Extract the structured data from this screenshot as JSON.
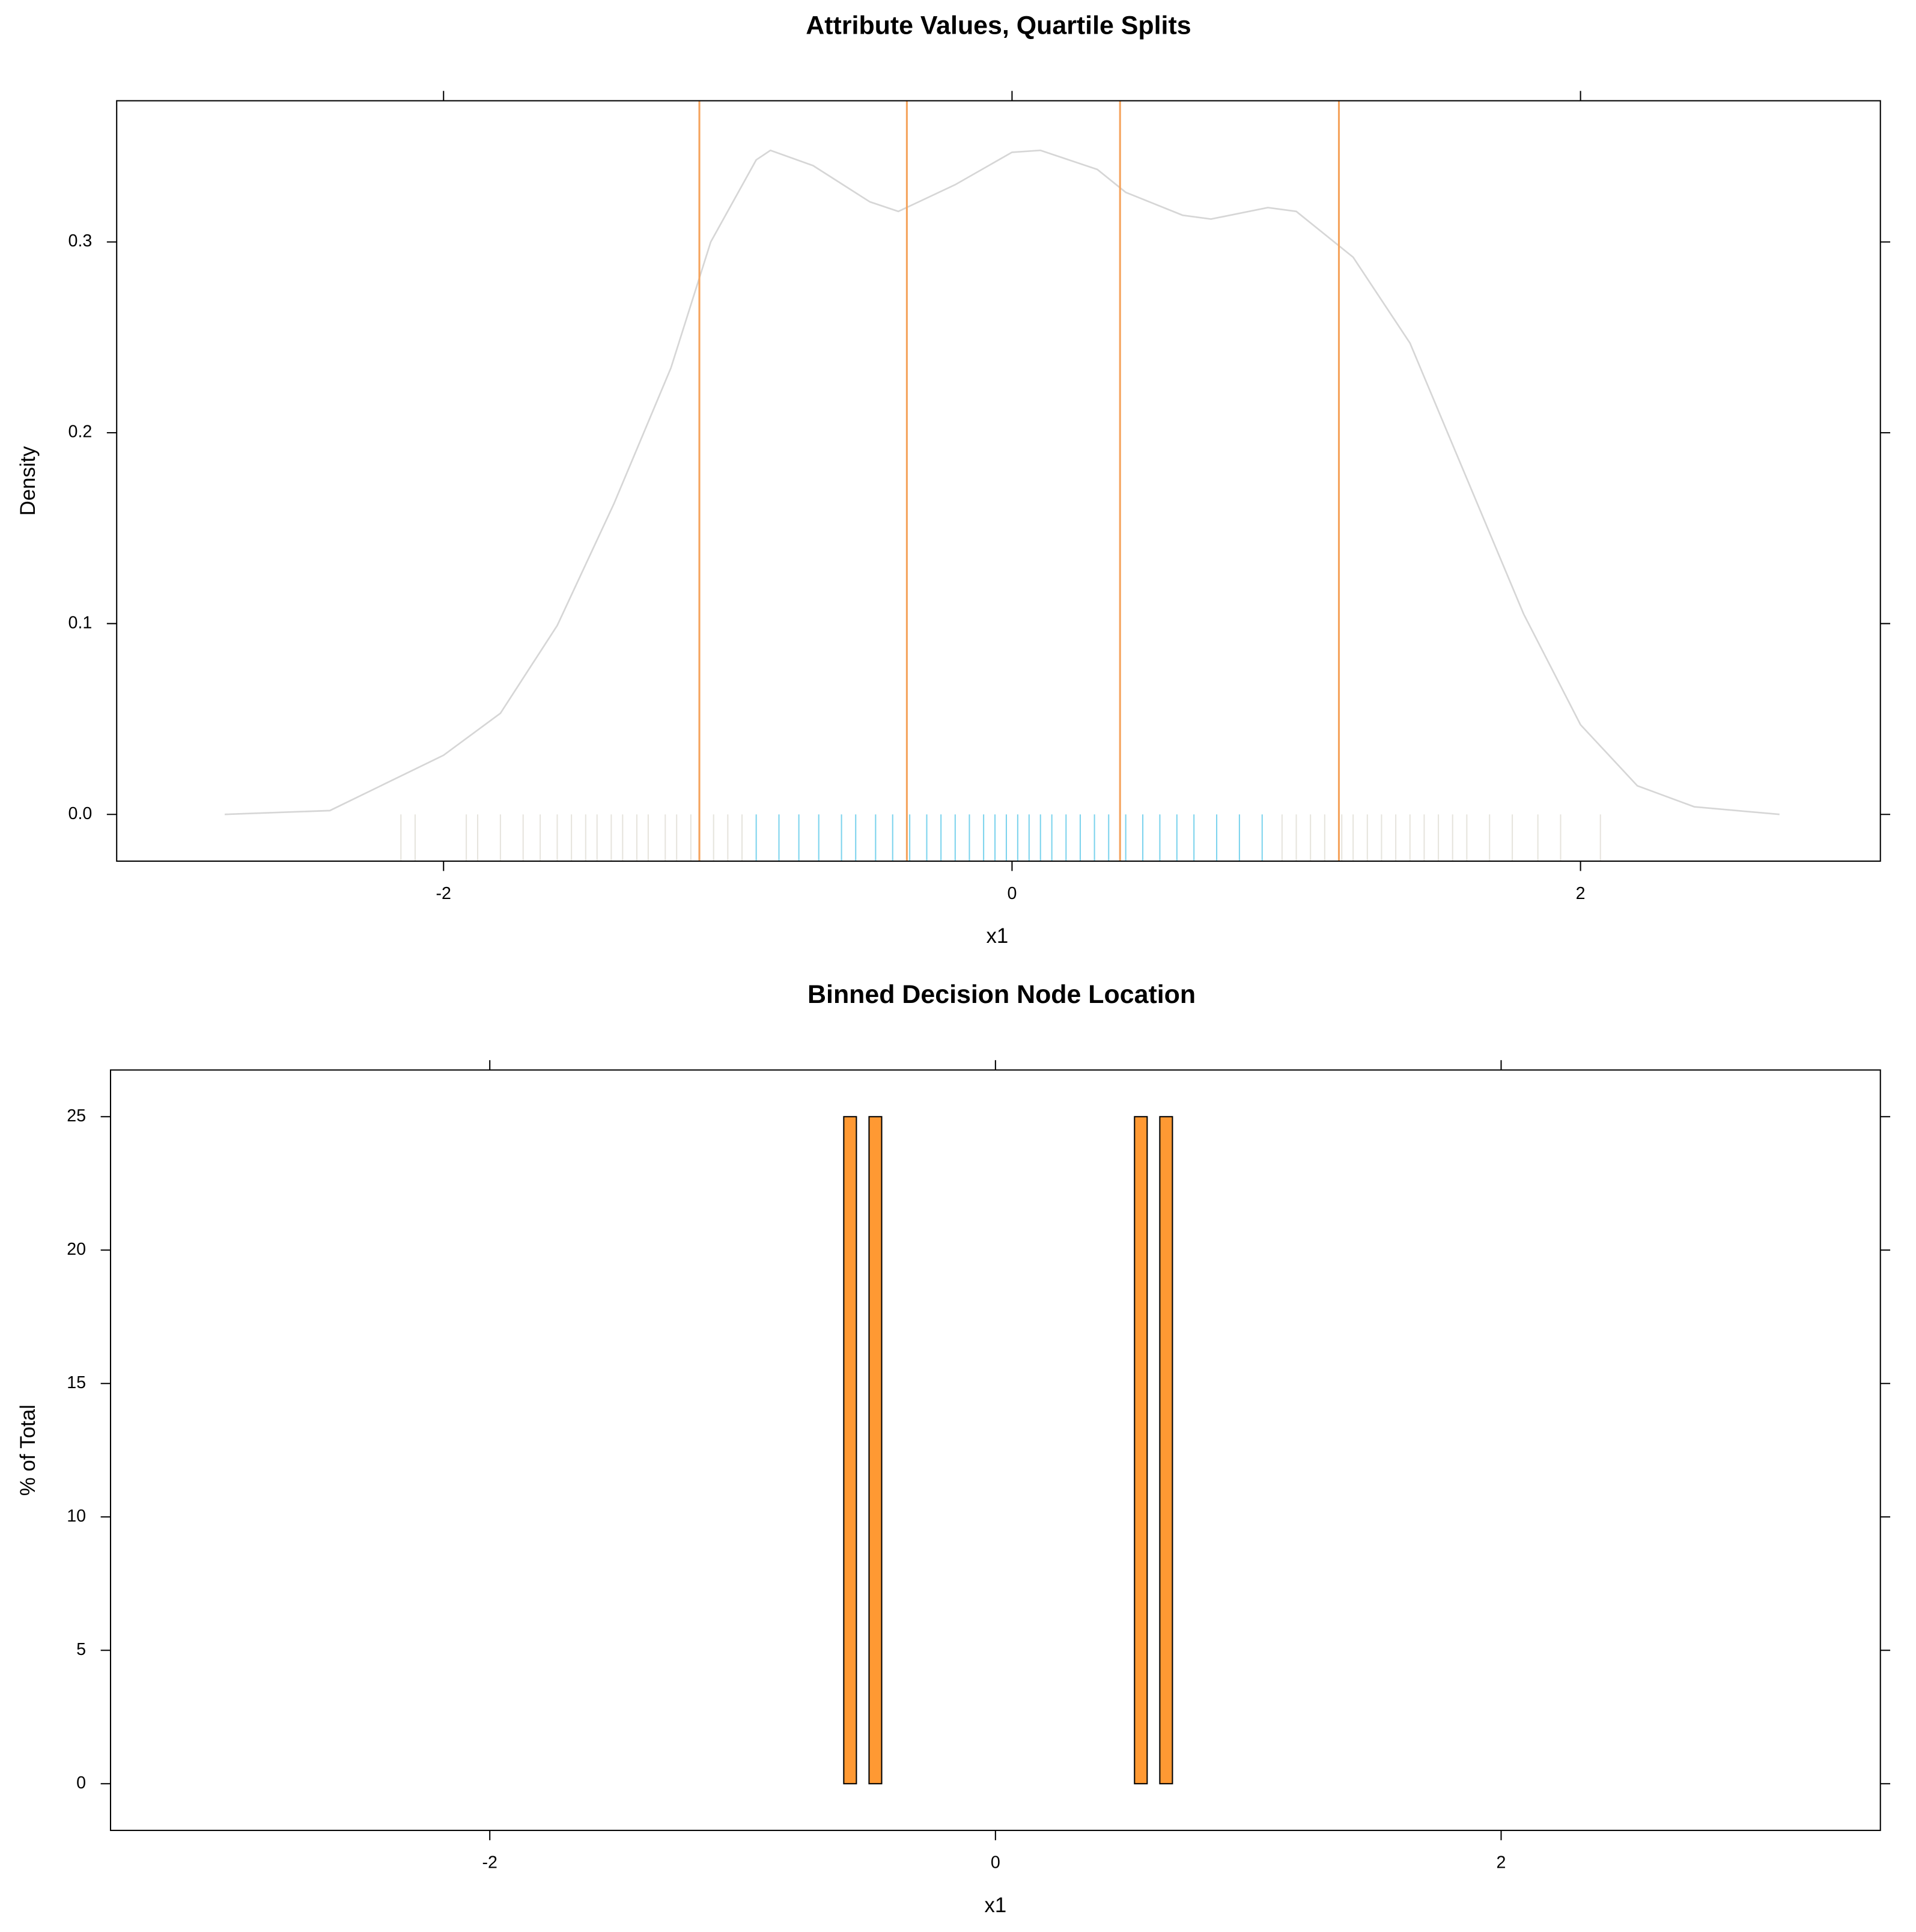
{
  "chart_data": [
    {
      "type": "line",
      "title": "Attribute Values, Quartile Splits",
      "x_label": "x1",
      "y_label": "Density",
      "x": [
        -2.77,
        -2.4,
        -2.0,
        -1.8,
        -1.6,
        -1.4,
        -1.2,
        -1.06,
        -0.9,
        -0.85,
        -0.7,
        -0.5,
        -0.4,
        -0.2,
        0.0,
        0.1,
        0.3,
        0.4,
        0.6,
        0.7,
        0.9,
        1.0,
        1.2,
        1.4,
        1.6,
        1.8,
        2.0,
        2.2,
        2.4,
        2.7
      ],
      "series": [
        {
          "color": "#d6d6d6",
          "values": [
            0,
            0.002,
            0.031,
            0.053,
            0.099,
            0.163,
            0.234,
            0.3,
            0.343,
            0.348,
            0.34,
            0.321,
            0.316,
            0.33,
            0.347,
            0.348,
            0.338,
            0.326,
            0.314,
            0.312,
            0.318,
            0.316,
            0.292,
            0.247,
            0.176,
            0.105,
            0.047,
            0.015,
            0.004,
            0
          ]
        }
      ],
      "quartile_splits": {
        "color": "#f5a35c",
        "values": [
          -1.1,
          -0.37,
          0.38,
          1.15
        ]
      },
      "rug": [
        {
          "color": "#e0ddd5",
          "values": [
            -2.15,
            -2.1,
            -1.92,
            -1.88,
            -1.8,
            -1.72,
            -1.66,
            -1.6,
            -1.55,
            -1.5,
            -1.46,
            -1.41,
            -1.37,
            -1.32,
            -1.28,
            -1.22,
            -1.18,
            -1.13,
            -1.05,
            -1.0,
            -0.95,
            0.95,
            1.0,
            1.05,
            1.1,
            1.16,
            1.2,
            1.25,
            1.3,
            1.35,
            1.4,
            1.45,
            1.5,
            1.55,
            1.6,
            1.68,
            1.76,
            1.85,
            1.93,
            2.07
          ]
        },
        {
          "color": "#5bc8e8",
          "values": [
            -0.9,
            -0.82,
            -0.75,
            -0.68,
            -0.6,
            -0.55,
            -0.48,
            -0.42,
            -0.36,
            -0.3,
            -0.25,
            -0.2,
            -0.15,
            -0.1,
            -0.06,
            -0.02,
            0.02,
            0.06,
            0.1,
            0.14,
            0.19,
            0.24,
            0.29,
            0.34,
            0.4,
            0.46,
            0.52,
            0.58,
            0.64,
            0.72,
            0.8,
            0.88
          ]
        }
      ],
      "xlim": [
        -3.15,
        3.055
      ],
      "ylim": [
        -0.0245,
        0.374
      ],
      "xticks": [
        -2,
        0,
        2
      ],
      "yticks": [
        {
          "value": 0,
          "label": "0.0"
        },
        0.1,
        0.2,
        0.3
      ]
    },
    {
      "type": "histogram",
      "title": "Binned Decision Node Location",
      "x_label": "x1",
      "y_label": "% of Total",
      "color": "#ff9933",
      "bins": [
        -3.15,
        -3.1,
        -3.05,
        -3,
        -2.95,
        -2.9,
        -2.85,
        -2.8,
        -2.75,
        -2.7,
        -2.65,
        -2.6,
        -2.55,
        -2.5,
        -2.45,
        -2.4,
        -2.35,
        -2.3,
        -2.25,
        -2.2,
        -2.15,
        -2.1,
        -2.05,
        -2,
        -1.95,
        -1.9,
        -1.85,
        -1.8,
        -1.75,
        -1.7,
        -1.65,
        -1.6,
        -1.55,
        -1.5,
        -1.45,
        -1.4,
        -1.35,
        -1.3,
        -1.25,
        -1.2,
        -1.15,
        -1.1,
        -1.05,
        -1,
        -0.95,
        -0.9,
        -0.85,
        -0.8,
        -0.75,
        -0.7,
        -0.65,
        -0.6,
        -0.55,
        -0.5,
        -0.45,
        -0.4,
        -0.35,
        -0.3,
        -0.25,
        -0.2,
        -0.15,
        -0.1,
        -0.05,
        0,
        0.05,
        0.1,
        0.15,
        0.2,
        0.25,
        0.3,
        0.35,
        0.4,
        0.45,
        0.5,
        0.55,
        0.6,
        0.65,
        0.7,
        0.75,
        0.8,
        0.85,
        0.9,
        0.95,
        1,
        1.05,
        1.1,
        1.15,
        1.2,
        1.25,
        1.3,
        1.35,
        1.4,
        1.45,
        1.5,
        1.55,
        1.6,
        1.65,
        1.7,
        1.75,
        1.8,
        1.85,
        1.9,
        1.95,
        2,
        2.05,
        2.1,
        2.15,
        2.2,
        2.25,
        2.3,
        2.35,
        2.4,
        2.45,
        2.5,
        2.55,
        2.6,
        2.65,
        2.7,
        2.75,
        2.8,
        2.85,
        2.9,
        2.95,
        3,
        3.05,
        3.1,
        3.15
      ],
      "values": [
        0,
        0,
        0,
        0,
        0,
        0,
        0,
        0,
        0,
        0,
        0,
        0,
        0,
        0,
        0,
        0,
        0,
        0,
        0,
        0,
        0,
        0,
        0,
        0,
        0,
        0,
        0,
        0,
        0,
        0,
        0,
        0,
        0,
        0,
        0,
        0,
        0,
        0,
        0,
        0,
        0,
        0,
        0,
        0,
        0,
        0,
        0,
        0,
        0,
        0,
        0,
        25,
        0,
        25,
        0,
        0,
        0,
        0,
        0,
        0,
        0,
        0,
        0,
        0,
        0,
        0,
        0,
        0,
        0,
        0,
        0,
        0,
        0,
        0,
        25,
        0,
        25,
        0,
        0,
        0,
        0,
        0,
        0,
        0,
        0,
        0,
        0,
        0,
        0,
        0,
        0,
        0,
        0,
        0,
        0,
        0,
        0,
        0,
        0,
        0,
        0,
        0,
        0,
        0,
        0,
        0,
        0,
        0,
        0,
        0,
        0,
        0,
        0,
        0,
        0,
        0,
        0,
        0,
        0,
        0,
        0,
        0,
        0,
        0,
        0,
        0
      ],
      "xlim": [
        -3.5,
        3.5
      ],
      "ylim": [
        -1.75,
        26.75
      ],
      "xticks": [
        -2,
        0,
        2
      ],
      "yticks": [
        0,
        5,
        10,
        15,
        20,
        25
      ]
    }
  ]
}
